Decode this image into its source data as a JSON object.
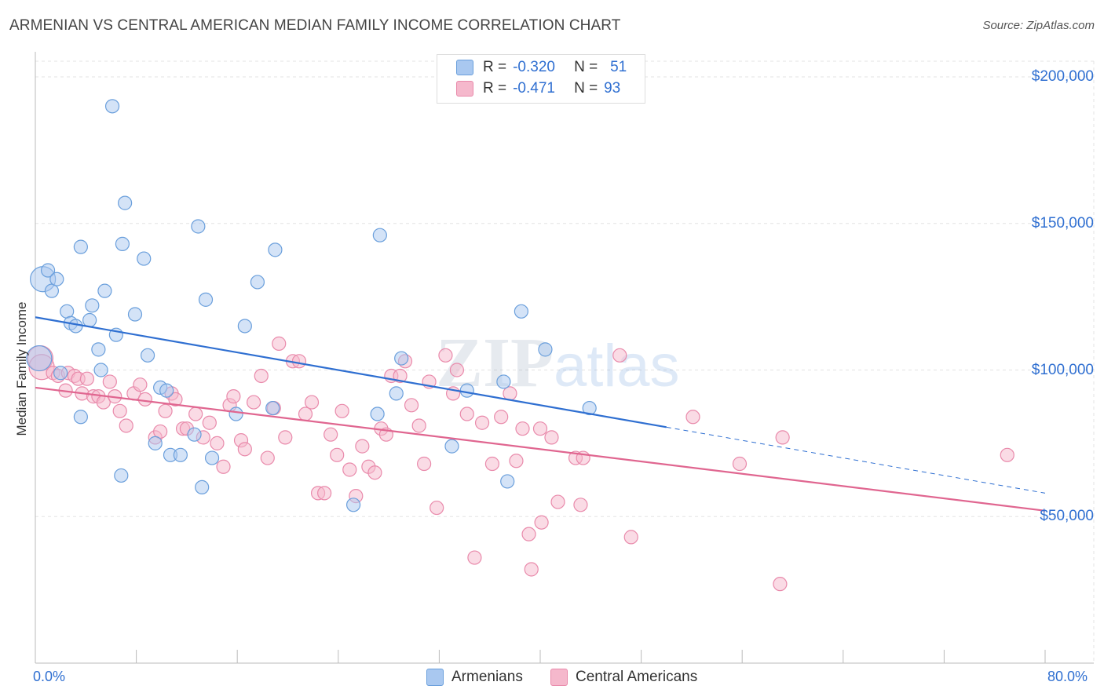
{
  "header": {
    "title": "ARMENIAN VS CENTRAL AMERICAN MEDIAN FAMILY INCOME CORRELATION CHART",
    "source": "Source: ZipAtlas.com"
  },
  "legend": {
    "rows": [
      {
        "r_label": "R =",
        "r_value": "-0.320",
        "n_label": "N =",
        "n_value": "51",
        "color": "#a9c8f0"
      },
      {
        "r_label": "R =",
        "r_value": "-0.471",
        "n_label": "N =",
        "n_value": "93",
        "color": "#f5b8cc"
      }
    ]
  },
  "bottom_legend": [
    "Armenians",
    "Central Americans"
  ],
  "axes": {
    "ylabel": "Median Family Income",
    "x_min_label": "0.0%",
    "x_max_label": "80.0%",
    "y_ticks": [
      {
        "value": 200000,
        "label": "$200,000"
      },
      {
        "value": 150000,
        "label": "$150,000"
      },
      {
        "value": 100000,
        "label": "$100,000"
      },
      {
        "value": 50000,
        "label": "$50,000"
      }
    ]
  },
  "watermark": {
    "zip": "ZIP",
    "atlas": "atlas"
  },
  "colors": {
    "blue_fill": "#a9c8f0",
    "blue_stroke": "#6a9fdc",
    "blue_line": "#2f6fd1",
    "pink_fill": "#f5b8cc",
    "pink_stroke": "#e98aab",
    "pink_line": "#e06690",
    "grid": "#e3e3e3",
    "axis_text": "#2f6fd1"
  },
  "chart_data": {
    "type": "scatter",
    "title": "ARMENIAN VS CENTRAL AMERICAN MEDIAN FAMILY INCOME CORRELATION CHART",
    "xlabel": "",
    "ylabel": "Median Family Income",
    "xlim": [
      0,
      80
    ],
    "ylim": [
      0,
      205000
    ],
    "series": [
      {
        "name": "Armenians",
        "r": -0.32,
        "n": 51,
        "trend": {
          "x0": 0,
          "y0": 118000,
          "x1": 50,
          "y1": 80500,
          "dashed_to_x": 80,
          "dashed_to_y": 58000
        },
        "points": [
          [
            0.3,
            104000
          ],
          [
            0.6,
            131000
          ],
          [
            1.0,
            134000
          ],
          [
            1.3,
            127000
          ],
          [
            1.7,
            131000
          ],
          [
            2.0,
            99000
          ],
          [
            2.5,
            120000
          ],
          [
            2.8,
            116000
          ],
          [
            3.2,
            115000
          ],
          [
            3.6,
            142000
          ],
          [
            4.3,
            117000
          ],
          [
            4.5,
            122000
          ],
          [
            5.0,
            107000
          ],
          [
            5.2,
            100000
          ],
          [
            5.5,
            127000
          ],
          [
            6.1,
            190000
          ],
          [
            6.4,
            112000
          ],
          [
            6.8,
            64000
          ],
          [
            6.9,
            143000
          ],
          [
            7.1,
            157000
          ],
          [
            7.9,
            119000
          ],
          [
            8.6,
            138000
          ],
          [
            8.9,
            105000
          ],
          [
            9.5,
            75000
          ],
          [
            9.9,
            94000
          ],
          [
            10.4,
            93000
          ],
          [
            10.7,
            71000
          ],
          [
            11.5,
            71000
          ],
          [
            12.6,
            78000
          ],
          [
            12.9,
            149000
          ],
          [
            13.2,
            60000
          ],
          [
            13.5,
            124000
          ],
          [
            14.0,
            70000
          ],
          [
            15.9,
            85000
          ],
          [
            16.6,
            115000
          ],
          [
            17.6,
            130000
          ],
          [
            18.8,
            87000
          ],
          [
            19.0,
            141000
          ],
          [
            25.2,
            54000
          ],
          [
            27.1,
            85000
          ],
          [
            27.3,
            146000
          ],
          [
            28.6,
            92000
          ],
          [
            29.0,
            104000
          ],
          [
            33.0,
            74000
          ],
          [
            34.2,
            93000
          ],
          [
            37.1,
            96000
          ],
          [
            37.4,
            62000
          ],
          [
            38.5,
            120000
          ],
          [
            40.4,
            107000
          ],
          [
            43.9,
            87000
          ],
          [
            3.6,
            84000
          ]
        ]
      },
      {
        "name": "Central Americans",
        "r": -0.471,
        "n": 93,
        "trend": {
          "x0": 0,
          "y0": 94000,
          "x1": 80,
          "y1": 52000
        },
        "points": [
          [
            0.4,
            104000
          ],
          [
            0.5,
            101000
          ],
          [
            1.4,
            99000
          ],
          [
            1.8,
            98000
          ],
          [
            2.4,
            93000
          ],
          [
            2.6,
            99000
          ],
          [
            3.1,
            98000
          ],
          [
            3.4,
            97000
          ],
          [
            3.7,
            92000
          ],
          [
            4.1,
            97000
          ],
          [
            4.6,
            91000
          ],
          [
            5.0,
            91000
          ],
          [
            5.4,
            89000
          ],
          [
            5.9,
            96000
          ],
          [
            6.3,
            91000
          ],
          [
            6.7,
            86000
          ],
          [
            7.2,
            81000
          ],
          [
            7.8,
            92000
          ],
          [
            8.3,
            95000
          ],
          [
            8.7,
            90000
          ],
          [
            9.5,
            77000
          ],
          [
            9.9,
            79000
          ],
          [
            10.3,
            86000
          ],
          [
            10.8,
            92000
          ],
          [
            11.1,
            90000
          ],
          [
            11.7,
            80000
          ],
          [
            12.0,
            80000
          ],
          [
            12.7,
            85000
          ],
          [
            13.3,
            77000
          ],
          [
            13.8,
            82000
          ],
          [
            14.4,
            75000
          ],
          [
            14.9,
            67000
          ],
          [
            15.4,
            88000
          ],
          [
            15.7,
            91000
          ],
          [
            16.3,
            76000
          ],
          [
            16.6,
            73000
          ],
          [
            17.3,
            89000
          ],
          [
            17.9,
            98000
          ],
          [
            18.4,
            70000
          ],
          [
            18.9,
            87000
          ],
          [
            19.3,
            109000
          ],
          [
            19.8,
            77000
          ],
          [
            20.4,
            103000
          ],
          [
            20.9,
            103000
          ],
          [
            21.4,
            85000
          ],
          [
            21.9,
            89000
          ],
          [
            22.4,
            58000
          ],
          [
            22.9,
            58000
          ],
          [
            23.4,
            78000
          ],
          [
            23.9,
            71000
          ],
          [
            24.3,
            86000
          ],
          [
            24.9,
            66000
          ],
          [
            25.4,
            57000
          ],
          [
            25.9,
            74000
          ],
          [
            26.4,
            67000
          ],
          [
            26.9,
            65000
          ],
          [
            27.4,
            80000
          ],
          [
            27.8,
            78000
          ],
          [
            28.2,
            98000
          ],
          [
            28.9,
            98000
          ],
          [
            29.3,
            103000
          ],
          [
            29.8,
            88000
          ],
          [
            30.4,
            81000
          ],
          [
            30.8,
            68000
          ],
          [
            31.2,
            96000
          ],
          [
            31.8,
            53000
          ],
          [
            32.5,
            105000
          ],
          [
            33.1,
            92000
          ],
          [
            33.4,
            100000
          ],
          [
            34.2,
            85000
          ],
          [
            34.8,
            36000
          ],
          [
            35.4,
            82000
          ],
          [
            36.2,
            68000
          ],
          [
            36.9,
            84000
          ],
          [
            37.6,
            92000
          ],
          [
            38.1,
            69000
          ],
          [
            38.6,
            80000
          ],
          [
            39.3,
            32000
          ],
          [
            40.0,
            80000
          ],
          [
            39.1,
            44000
          ],
          [
            40.1,
            48000
          ],
          [
            40.9,
            77000
          ],
          [
            41.4,
            55000
          ],
          [
            42.8,
            70000
          ],
          [
            43.2,
            54000
          ],
          [
            43.4,
            70000
          ],
          [
            46.3,
            105000
          ],
          [
            47.2,
            43000
          ],
          [
            52.1,
            84000
          ],
          [
            55.8,
            68000
          ],
          [
            59.0,
            27000
          ],
          [
            59.2,
            77000
          ],
          [
            77.0,
            71000
          ]
        ]
      }
    ]
  }
}
